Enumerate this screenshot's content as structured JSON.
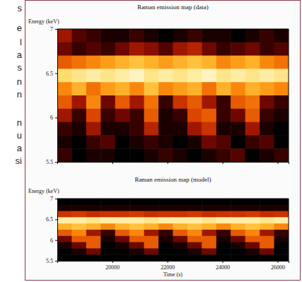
{
  "side_text": [
    "s",
    "e",
    "l",
    "a",
    "s",
    "n",
    "n",
    "n",
    "u",
    "a",
    "si"
  ],
  "chart_data": [
    {
      "type": "heatmap",
      "title": "Raman emission map (data)",
      "y_label": "Energy (keV)",
      "xlim": [
        18000,
        26400
      ],
      "xticks": [
        20000,
        22000,
        24000,
        26000
      ],
      "ylim": [
        5.5,
        7
      ],
      "yticks": [
        5.5,
        6,
        6.5,
        7
      ],
      "tick_labels": "y",
      "zlim": [
        0,
        1
      ],
      "cells": [
        [
          0.3,
          0.15,
          0.1,
          0.05,
          0.05,
          0.1,
          0.05,
          0,
          0.05,
          0.1,
          0.05,
          0.05,
          0,
          0.05,
          0.1,
          0.05
        ],
        [
          0.2,
          0.1,
          0.15,
          0.1,
          0.2,
          0.3,
          0.25,
          0.15,
          0.3,
          0.35,
          0.2,
          0.1,
          0.15,
          0.2,
          0.1,
          0.15
        ],
        [
          0.5,
          0.55,
          0.6,
          0.65,
          0.7,
          0.75,
          0.7,
          0.65,
          0.7,
          0.75,
          0.7,
          0.6,
          0.65,
          0.7,
          0.6,
          0.55
        ],
        [
          0.85,
          0.9,
          0.95,
          0.9,
          0.95,
          1,
          0.9,
          0.95,
          0.9,
          0.95,
          1,
          0.9,
          0.95,
          0.9,
          0.95,
          0.9
        ],
        [
          0.6,
          0.7,
          0.55,
          0.65,
          0.7,
          0.6,
          0.75,
          0.6,
          0.65,
          0.7,
          0.55,
          0.7,
          0.6,
          0.7,
          0.65,
          0.6
        ],
        [
          0.5,
          0.3,
          0.6,
          0.2,
          0.5,
          0.3,
          0.55,
          0.1,
          0.4,
          0.5,
          0.3,
          0.1,
          0.5,
          0.55,
          0.2,
          0.1
        ],
        [
          0.3,
          0.1,
          0.45,
          0.1,
          0.2,
          0.1,
          0.5,
          0.05,
          0.1,
          0.45,
          0.5,
          0.1,
          0.2,
          0.5,
          0.1,
          0.05
        ],
        [
          0.1,
          0.05,
          0.3,
          0.05,
          0.05,
          0.1,
          0.35,
          0.05,
          0.05,
          0.3,
          0.4,
          0.05,
          0.05,
          0.3,
          0.05,
          0
        ],
        [
          0.05,
          0,
          0.1,
          0.15,
          0,
          0.05,
          0.1,
          0.05,
          0,
          0.05,
          0.2,
          0.15,
          0,
          0.1,
          0.15,
          0
        ],
        [
          0.1,
          0,
          0.05,
          0.05,
          0,
          0,
          0.05,
          0.1,
          0.05,
          0,
          0.05,
          0.1,
          0.15,
          0,
          0.05,
          0.1
        ]
      ]
    },
    {
      "type": "heatmap",
      "title": "Raman emission map (model)",
      "y_label": "Energy (keV)",
      "x_label": "Time (s)",
      "xlim": [
        18000,
        26400
      ],
      "xticks": [
        20000,
        22000,
        24000,
        26000
      ],
      "ylim": [
        5.5,
        7
      ],
      "yticks": [
        5.5,
        6,
        6.5,
        7
      ],
      "zlim": [
        0,
        1
      ],
      "cells": [
        [
          0,
          0,
          0,
          0,
          0,
          0,
          0,
          0,
          0,
          0,
          0,
          0,
          0,
          0,
          0,
          0
        ],
        [
          0.05,
          0.05,
          0.05,
          0.05,
          0.05,
          0.05,
          0.05,
          0.05,
          0.05,
          0.05,
          0.05,
          0.05,
          0.05,
          0.05,
          0.05,
          0.05
        ],
        [
          0.4,
          0.42,
          0.38,
          0.4,
          0.4,
          0.42,
          0.38,
          0.4,
          0.4,
          0.42,
          0.38,
          0.4,
          0.4,
          0.42,
          0.38,
          0.4
        ],
        [
          0.95,
          0.95,
          0.9,
          0.95,
          0.95,
          0.95,
          0.9,
          0.95,
          0.95,
          0.95,
          0.9,
          0.95,
          0.95,
          0.95,
          0.9,
          0.95
        ],
        [
          0.7,
          0.75,
          0.7,
          0.6,
          0.7,
          0.75,
          0.7,
          0.6,
          0.7,
          0.75,
          0.7,
          0.6,
          0.7,
          0.75,
          0.7,
          0.6
        ],
        [
          0.5,
          0.6,
          0.3,
          0.1,
          0.5,
          0.6,
          0.3,
          0.1,
          0.5,
          0.6,
          0.3,
          0.1,
          0.5,
          0.6,
          0.3,
          0.1
        ],
        [
          0.2,
          0.5,
          0.5,
          0.05,
          0.2,
          0.5,
          0.5,
          0.05,
          0.2,
          0.5,
          0.5,
          0.05,
          0.2,
          0.5,
          0.5,
          0.05
        ],
        [
          0.05,
          0.2,
          0.5,
          0,
          0.05,
          0.2,
          0.5,
          0,
          0.05,
          0.2,
          0.5,
          0,
          0.05,
          0.2,
          0.5,
          0
        ],
        [
          0,
          0.05,
          0.2,
          0,
          0,
          0.05,
          0.2,
          0,
          0,
          0.05,
          0.2,
          0,
          0,
          0.05,
          0.2,
          0
        ],
        [
          0,
          0,
          0,
          0,
          0,
          0,
          0,
          0,
          0,
          0,
          0,
          0,
          0,
          0,
          0,
          0
        ]
      ]
    }
  ]
}
